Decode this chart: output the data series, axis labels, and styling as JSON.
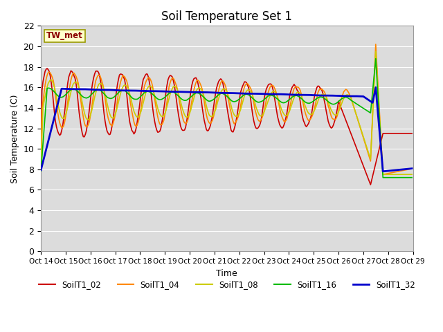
{
  "title": "Soil Temperature Set 1",
  "xlabel": "Time",
  "ylabel": "Soil Temperature (C)",
  "ylim": [
    0,
    22
  ],
  "yticks": [
    0,
    2,
    4,
    6,
    8,
    10,
    12,
    14,
    16,
    18,
    20,
    22
  ],
  "xtick_labels": [
    "Oct 14",
    "Oct 15",
    "Oct 16",
    "Oct 17",
    "Oct 18",
    "Oct 19",
    "Oct 20",
    "Oct 21",
    "Oct 22",
    "Oct 23",
    "Oct 24",
    "Oct 25",
    "Oct 26",
    "Oct 27",
    "Oct 28",
    "Oct 29"
  ],
  "annotation": "TW_met",
  "annotation_color": "#8B0000",
  "annotation_bg": "#FFFFCC",
  "background_color": "#DCDCDC",
  "grid_color": "#FFFFFF",
  "series": {
    "SoilT1_02": {
      "color": "#CC0000",
      "lw": 1.2
    },
    "SoilT1_04": {
      "color": "#FF8800",
      "lw": 1.2
    },
    "SoilT1_08": {
      "color": "#CCCC00",
      "lw": 1.2
    },
    "SoilT1_16": {
      "color": "#00BB00",
      "lw": 1.2
    },
    "SoilT1_32": {
      "color": "#0000CC",
      "lw": 2.0
    }
  }
}
